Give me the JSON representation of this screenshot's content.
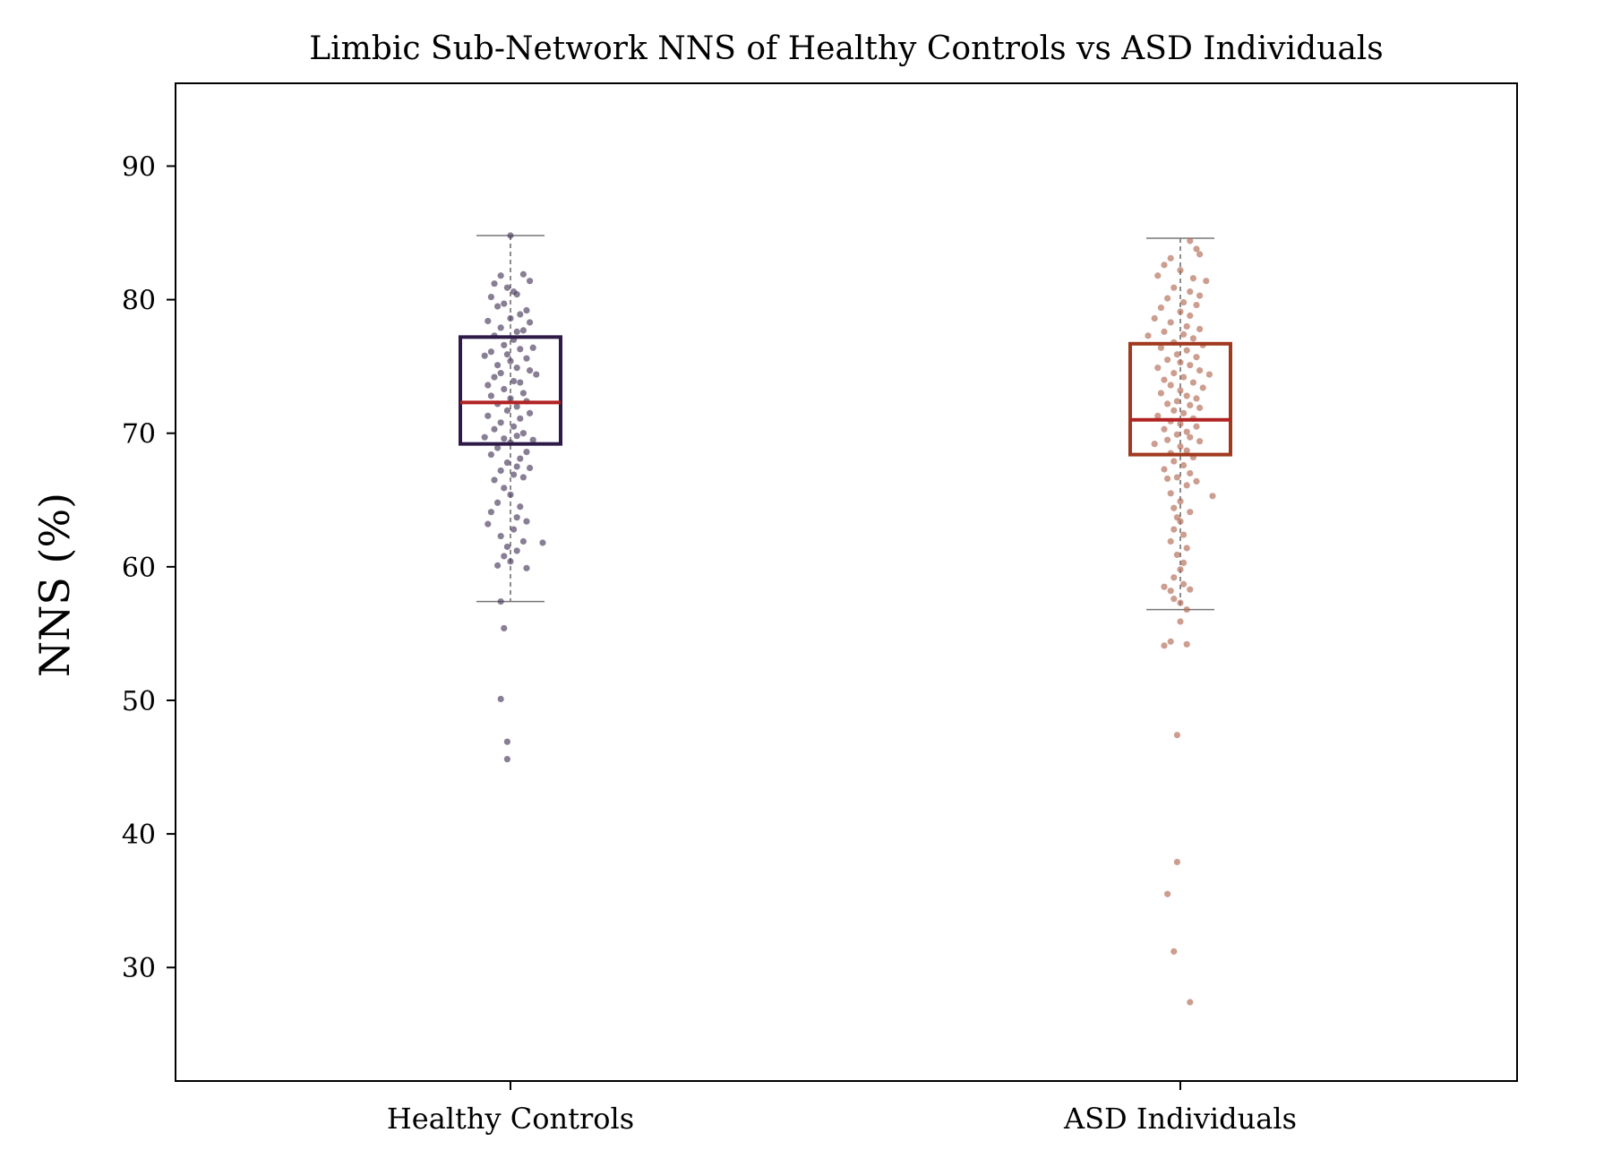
{
  "chart_data": {
    "type": "box",
    "title": "Limbic Sub-Network NNS of Healthy Controls vs ASD Individuals",
    "ylabel": "NNS (%)",
    "xlabel": "",
    "ylim": [
      21.5,
      96.2
    ],
    "yticks": [
      30,
      40,
      50,
      60,
      70,
      80,
      90
    ],
    "ytick_labels": [
      "30",
      "40",
      "50",
      "60",
      "70",
      "80",
      "90"
    ],
    "grid": false,
    "categories": [
      "Healthy Controls",
      "ASD Individuals"
    ],
    "series": [
      {
        "category": "Healthy Controls",
        "box_color": "#2e1a47",
        "median_color": "#b22222",
        "point_color": "#4a3a5c",
        "whisker_low": 57.4,
        "q1": 69.2,
        "median": 72.3,
        "q3": 77.2,
        "whisker_high": 84.8,
        "points": [
          [
            -0.03,
            81.8
          ],
          [
            0.04,
            81.9
          ],
          [
            0.06,
            81.4
          ],
          [
            -0.05,
            81.2
          ],
          [
            -0.01,
            80.9
          ],
          [
            0.02,
            80.4
          ],
          [
            -0.06,
            80.2
          ],
          [
            0.01,
            80.6
          ],
          [
            -0.02,
            79.7
          ],
          [
            0.05,
            79.2
          ],
          [
            -0.04,
            79.5
          ],
          [
            0.03,
            78.9
          ],
          [
            -0.07,
            78.4
          ],
          [
            0.0,
            78.6
          ],
          [
            0.06,
            78.3
          ],
          [
            -0.03,
            77.9
          ],
          [
            0.02,
            77.6
          ],
          [
            0.04,
            77.7
          ],
          [
            -0.05,
            77.3
          ],
          [
            0.01,
            77.0
          ],
          [
            -0.02,
            76.6
          ],
          [
            0.07,
            76.4
          ],
          [
            -0.06,
            76.1
          ],
          [
            0.03,
            76.3
          ],
          [
            -0.01,
            75.9
          ],
          [
            0.05,
            75.6
          ],
          [
            -0.08,
            75.8
          ],
          [
            0.0,
            75.4
          ],
          [
            -0.04,
            75.1
          ],
          [
            0.02,
            74.9
          ],
          [
            0.06,
            74.7
          ],
          [
            -0.03,
            74.5
          ],
          [
            0.08,
            74.4
          ],
          [
            -0.05,
            74.2
          ],
          [
            0.01,
            73.9
          ],
          [
            -0.07,
            73.6
          ],
          [
            0.03,
            73.8
          ],
          [
            -0.02,
            73.3
          ],
          [
            0.04,
            73.0
          ],
          [
            -0.06,
            72.8
          ],
          [
            0.0,
            72.6
          ],
          [
            0.05,
            72.4
          ],
          [
            -0.04,
            72.2
          ],
          [
            0.02,
            72.0
          ],
          [
            -0.01,
            71.7
          ],
          [
            0.06,
            71.5
          ],
          [
            -0.07,
            71.3
          ],
          [
            0.03,
            71.1
          ],
          [
            -0.03,
            70.8
          ],
          [
            0.01,
            70.5
          ],
          [
            -0.05,
            70.3
          ],
          [
            0.04,
            70.0
          ],
          [
            0.02,
            69.8
          ],
          [
            -0.02,
            69.6
          ],
          [
            0.07,
            69.5
          ],
          [
            -0.08,
            69.7
          ],
          [
            0.0,
            69.3
          ],
          [
            -0.04,
            68.9
          ],
          [
            0.05,
            68.6
          ],
          [
            -0.06,
            68.4
          ],
          [
            0.03,
            68.1
          ],
          [
            -0.01,
            67.8
          ],
          [
            0.02,
            67.5
          ],
          [
            -0.03,
            67.2
          ],
          [
            0.06,
            67.4
          ],
          [
            0.01,
            66.9
          ],
          [
            -0.05,
            66.5
          ],
          [
            0.04,
            66.7
          ],
          [
            -0.02,
            65.9
          ],
          [
            0.0,
            65.4
          ],
          [
            -0.04,
            64.8
          ],
          [
            0.03,
            64.5
          ],
          [
            -0.06,
            64.1
          ],
          [
            0.02,
            63.7
          ],
          [
            0.05,
            63.4
          ],
          [
            -0.07,
            63.2
          ],
          [
            0.01,
            62.8
          ],
          [
            -0.03,
            62.3
          ],
          [
            0.04,
            61.9
          ],
          [
            0.1,
            61.8
          ],
          [
            -0.01,
            61.5
          ],
          [
            0.02,
            61.2
          ],
          [
            -0.02,
            60.8
          ],
          [
            0.0,
            60.4
          ],
          [
            0.05,
            59.9
          ],
          [
            -0.04,
            60.1
          ],
          [
            -0.03,
            57.4
          ],
          [
            -0.02,
            55.4
          ],
          [
            -0.03,
            50.1
          ],
          [
            -0.01,
            46.9
          ],
          [
            -0.01,
            45.6
          ],
          [
            0.0,
            84.8
          ]
        ]
      },
      {
        "category": "ASD Individuals",
        "box_color": "#a0391e",
        "median_color": "#b22222",
        "point_color": "#b06a55",
        "whisker_low": 56.8,
        "q1": 68.4,
        "median": 71.0,
        "q3": 76.7,
        "whisker_high": 84.6,
        "points": [
          [
            0.03,
            84.4
          ],
          [
            0.05,
            83.8
          ],
          [
            -0.03,
            83.1
          ],
          [
            0.06,
            83.4
          ],
          [
            -0.05,
            82.6
          ],
          [
            0.0,
            82.2
          ],
          [
            -0.07,
            81.8
          ],
          [
            0.04,
            81.6
          ],
          [
            0.08,
            81.4
          ],
          [
            -0.02,
            80.9
          ],
          [
            0.03,
            80.6
          ],
          [
            0.06,
            80.3
          ],
          [
            -0.04,
            80.1
          ],
          [
            0.01,
            79.8
          ],
          [
            0.05,
            79.6
          ],
          [
            -0.06,
            79.4
          ],
          [
            0.0,
            79.1
          ],
          [
            0.03,
            78.8
          ],
          [
            -0.08,
            78.6
          ],
          [
            -0.03,
            78.3
          ],
          [
            0.02,
            78.0
          ],
          [
            0.06,
            77.8
          ],
          [
            -0.05,
            77.6
          ],
          [
            0.01,
            77.4
          ],
          [
            -0.1,
            77.3
          ],
          [
            0.04,
            77.1
          ],
          [
            -0.02,
            76.8
          ],
          [
            0.07,
            76.6
          ],
          [
            -0.06,
            76.4
          ],
          [
            0.02,
            76.2
          ],
          [
            -0.01,
            75.9
          ],
          [
            0.05,
            75.7
          ],
          [
            -0.04,
            75.5
          ],
          [
            0.0,
            75.3
          ],
          [
            0.03,
            75.1
          ],
          [
            -0.07,
            74.9
          ],
          [
            0.06,
            74.7
          ],
          [
            -0.02,
            74.5
          ],
          [
            0.09,
            74.4
          ],
          [
            0.01,
            74.2
          ],
          [
            -0.05,
            74.0
          ],
          [
            0.04,
            73.8
          ],
          [
            -0.03,
            73.6
          ],
          [
            0.07,
            73.4
          ],
          [
            0.0,
            73.2
          ],
          [
            -0.06,
            73.0
          ],
          [
            0.02,
            72.8
          ],
          [
            0.05,
            72.6
          ],
          [
            -0.01,
            72.4
          ],
          [
            -0.04,
            72.2
          ],
          [
            0.03,
            72.1
          ],
          [
            0.06,
            71.9
          ],
          [
            -0.02,
            71.7
          ],
          [
            0.01,
            71.5
          ],
          [
            -0.07,
            71.3
          ],
          [
            0.04,
            71.1
          ],
          [
            -0.03,
            70.9
          ],
          [
            0.0,
            70.7
          ],
          [
            0.05,
            70.5
          ],
          [
            -0.05,
            70.3
          ],
          [
            0.02,
            70.1
          ],
          [
            -0.01,
            69.9
          ],
          [
            0.03,
            69.7
          ],
          [
            -0.04,
            69.5
          ],
          [
            0.06,
            69.4
          ],
          [
            -0.08,
            69.2
          ],
          [
            0.0,
            69.0
          ],
          [
            0.02,
            68.7
          ],
          [
            -0.03,
            68.5
          ],
          [
            0.04,
            68.2
          ],
          [
            -0.02,
            67.9
          ],
          [
            0.01,
            67.6
          ],
          [
            -0.05,
            67.3
          ],
          [
            0.03,
            67.0
          ],
          [
            -0.01,
            66.7
          ],
          [
            0.05,
            66.4
          ],
          [
            -0.04,
            66.6
          ],
          [
            0.02,
            66.1
          ],
          [
            0.1,
            65.3
          ],
          [
            -0.03,
            65.5
          ],
          [
            0.0,
            64.9
          ],
          [
            -0.02,
            64.4
          ],
          [
            0.03,
            64.1
          ],
          [
            -0.01,
            63.7
          ],
          [
            0.0,
            63.4
          ],
          [
            -0.02,
            62.8
          ],
          [
            0.01,
            62.4
          ],
          [
            -0.03,
            61.9
          ],
          [
            0.02,
            61.4
          ],
          [
            -0.01,
            60.9
          ],
          [
            0.01,
            60.3
          ],
          [
            0.0,
            59.8
          ],
          [
            -0.02,
            59.2
          ],
          [
            0.01,
            58.7
          ],
          [
            -0.05,
            58.5
          ],
          [
            -0.03,
            58.2
          ],
          [
            0.03,
            58.3
          ],
          [
            -0.02,
            57.6
          ],
          [
            0.0,
            57.3
          ],
          [
            0.02,
            56.8
          ],
          [
            0.0,
            55.9
          ],
          [
            -0.05,
            54.1
          ],
          [
            -0.03,
            54.4
          ],
          [
            0.02,
            54.2
          ],
          [
            -0.01,
            47.4
          ],
          [
            -0.01,
            37.9
          ],
          [
            -0.04,
            35.5
          ],
          [
            -0.02,
            31.2
          ],
          [
            0.03,
            27.4
          ]
        ]
      }
    ]
  }
}
